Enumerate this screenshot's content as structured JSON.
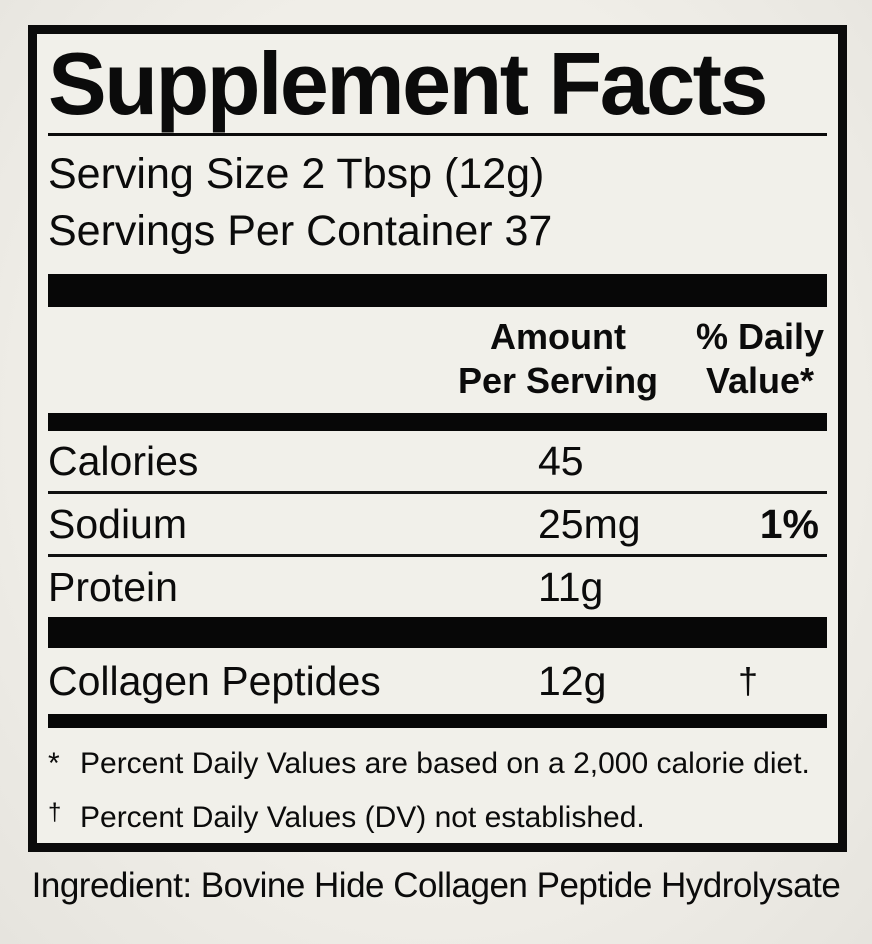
{
  "label": {
    "title": "Supplement Facts",
    "serving_size": "Serving Size 2 Tbsp (12g)",
    "servings_per_container": "Servings Per Container 37",
    "header": {
      "amount_line1": "Amount",
      "amount_line2": "Per Serving",
      "dv_line1": "% Daily",
      "dv_line2": "Value*"
    },
    "rows": [
      {
        "name": "Calories",
        "amount": "45",
        "dv": ""
      },
      {
        "name": "Sodium",
        "amount": "25mg",
        "dv": "1%"
      },
      {
        "name": "Protein",
        "amount": "11g",
        "dv": ""
      }
    ],
    "other_rows": [
      {
        "name": "Collagen Peptides",
        "amount": "12g",
        "dv": "†"
      }
    ],
    "footnotes": [
      {
        "mark": "*",
        "text": "Percent Daily Values are based on a 2,000 calorie diet."
      },
      {
        "mark": "†",
        "text": "Percent Daily Values (DV) not established."
      }
    ],
    "ingredient": "Ingredient: Bovine Hide Collagen Peptide Hydrolysate"
  },
  "colors": {
    "ink": "#0b0b0b",
    "panel_background": "#f1f0ea",
    "page_background": "#e9e7e1"
  }
}
